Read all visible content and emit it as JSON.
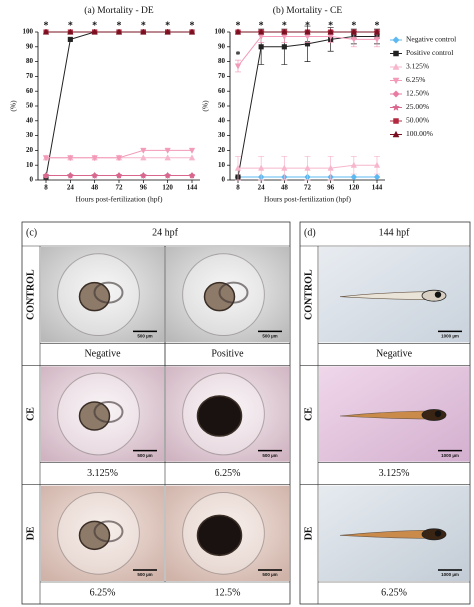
{
  "chart_data": [
    {
      "type": "line",
      "title": "(a) Mortality - DE",
      "y_label": "(%)",
      "x_label": "Hours post-fertilization (hpf)",
      "categories": [
        "8",
        "24",
        "48",
        "72",
        "96",
        "120",
        "144"
      ],
      "ylim": [
        0,
        100
      ],
      "yticks": [
        0,
        10,
        20,
        30,
        40,
        50,
        60,
        70,
        80,
        90,
        100
      ],
      "legend": false,
      "series": [
        {
          "name": "Negative control",
          "color": "#5bb8f0",
          "marker": "diamond",
          "values": [
            3,
            3,
            3,
            3,
            3,
            3,
            3
          ]
        },
        {
          "name": "Positive control",
          "color": "#222222",
          "marker": "square",
          "values": [
            2,
            95,
            100,
            100,
            100,
            100,
            100
          ]
        },
        {
          "name": "3.125%",
          "color": "#f7b6cc",
          "marker": "triangle",
          "values": [
            15,
            15,
            15,
            15,
            15,
            15,
            15
          ]
        },
        {
          "name": "6.25%",
          "color": "#f29ab8",
          "marker": "triangle-down",
          "values": [
            15,
            15,
            15,
            15,
            20,
            20,
            20
          ]
        },
        {
          "name": "12.50%",
          "color": "#e97aa2",
          "marker": "diamond",
          "values": [
            3,
            3,
            3,
            3,
            3,
            3,
            3
          ]
        },
        {
          "name": "25.00%",
          "color": "#d9668c",
          "marker": "star",
          "values": [
            3,
            3,
            3,
            3,
            3,
            3,
            3
          ]
        },
        {
          "name": "50.00%",
          "color": "#b2283f",
          "marker": "square",
          "values": [
            100,
            100,
            100,
            100,
            100,
            100,
            100
          ]
        },
        {
          "name": "100.00%",
          "color": "#7a1020",
          "marker": "triangle",
          "values": [
            100,
            100,
            100,
            100,
            100,
            100,
            100
          ]
        }
      ],
      "annotations": [
        {
          "text": "*",
          "x": "8",
          "y": 100
        },
        {
          "text": "*",
          "x": "24",
          "y": 100
        },
        {
          "text": "*",
          "x": "48",
          "y": 100
        },
        {
          "text": "*",
          "x": "72",
          "y": 100
        },
        {
          "text": "*",
          "x": "96",
          "y": 100
        },
        {
          "text": "*",
          "x": "120",
          "y": 100
        },
        {
          "text": "*",
          "x": "144",
          "y": 100
        }
      ]
    },
    {
      "type": "line",
      "title": "(b) Mortality - CE",
      "y_label": "(%)",
      "x_label": "Hours post-fertilization (hpf)",
      "categories": [
        "8",
        "24",
        "48",
        "72",
        "96",
        "120",
        "144"
      ],
      "ylim": [
        0,
        100
      ],
      "yticks": [
        0,
        10,
        20,
        30,
        40,
        50,
        60,
        70,
        80,
        90,
        100
      ],
      "legend": "right",
      "series": [
        {
          "name": "Negative control",
          "color": "#5bb8f0",
          "marker": "diamond",
          "values": [
            2,
            2,
            2,
            2,
            2,
            2,
            2
          ]
        },
        {
          "name": "Positive control",
          "color": "#222222",
          "marker": "square",
          "values": [
            2,
            90,
            90,
            92,
            95,
            97,
            97
          ],
          "errors": [
            0,
            12,
            12,
            12,
            8,
            5,
            5
          ]
        },
        {
          "name": "3.125%",
          "color": "#f7b6cc",
          "marker": "triangle",
          "values": [
            8,
            8,
            8,
            8,
            8,
            10,
            10
          ],
          "errors": [
            8,
            8,
            8,
            8,
            8,
            6,
            6
          ]
        },
        {
          "name": "6.25%",
          "color": "#f29ab8",
          "marker": "triangle-down",
          "values": [
            77,
            97,
            97,
            97,
            97,
            95,
            95
          ],
          "errors": [
            4,
            4,
            4,
            4,
            4,
            5,
            5
          ]
        },
        {
          "name": "12.50%",
          "color": "#e97aa2",
          "marker": "diamond",
          "values": [
            100,
            100,
            100,
            100,
            100,
            100,
            100
          ]
        },
        {
          "name": "25.00%",
          "color": "#d9668c",
          "marker": "star",
          "values": [
            100,
            100,
            100,
            100,
            100,
            100,
            100
          ]
        },
        {
          "name": "50.00%",
          "color": "#b2283f",
          "marker": "square",
          "values": [
            100,
            100,
            100,
            100,
            100,
            100,
            100
          ]
        },
        {
          "name": "100.00%",
          "color": "#7a1020",
          "marker": "triangle",
          "values": [
            100,
            100,
            100,
            100,
            100,
            100,
            100
          ]
        }
      ],
      "annotations": [
        {
          "text": "*",
          "x": "8",
          "y": 100
        },
        {
          "text": "*",
          "x": "24",
          "y": 100
        },
        {
          "text": "*",
          "x": "48",
          "y": 100
        },
        {
          "text": "*",
          "x": "72",
          "y": 100
        },
        {
          "text": "*",
          "x": "96",
          "y": 100
        },
        {
          "text": "*",
          "x": "120",
          "y": 100
        },
        {
          "text": "*",
          "x": "144",
          "y": 100
        },
        {
          "text": "*",
          "x": "8",
          "y": 80
        }
      ]
    }
  ],
  "panels": [
    {
      "label": "(c)",
      "title": "24 hpf",
      "rows": [
        {
          "label": "CONTROL",
          "captions": [
            "Negative",
            "Positive"
          ],
          "scales": [
            "500 µm",
            "500 µm"
          ]
        },
        {
          "label": "CE",
          "captions": [
            "3.125%",
            "6.25%"
          ],
          "scales": [
            "500 µm",
            "500 µm"
          ]
        },
        {
          "label": "DE",
          "captions": [
            "6.25%",
            "12.5%"
          ],
          "scales": [
            "500 µm",
            "500 µm"
          ]
        }
      ]
    },
    {
      "label": "(d)",
      "title": "144 hpf",
      "rows": [
        {
          "label": "CONTROL",
          "captions": [
            "Negative"
          ],
          "scales": [
            "1000 µm"
          ]
        },
        {
          "label": "CE",
          "captions": [
            "3.125%"
          ],
          "scales": [
            "1000 µm"
          ]
        },
        {
          "label": "DE",
          "captions": [
            "6.25%"
          ],
          "scales": [
            "1000 µm"
          ]
        }
      ]
    }
  ]
}
